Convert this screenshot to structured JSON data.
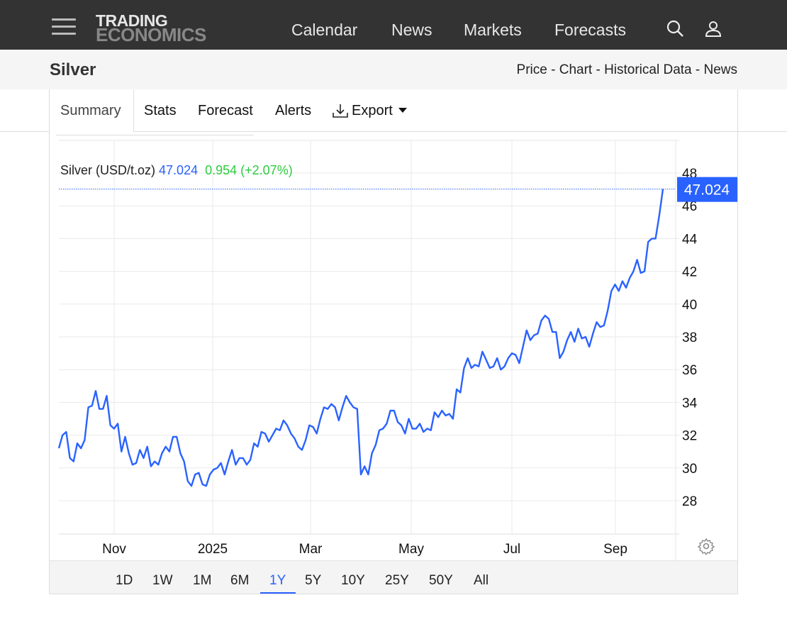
{
  "header": {
    "logo_line1": "TRADING",
    "logo_line2": "ECONOMICS",
    "nav": [
      "Calendar",
      "News",
      "Markets",
      "Forecasts"
    ]
  },
  "subheader": {
    "title": "Silver",
    "links": "Price - Chart - Historical Data - News"
  },
  "tabs": [
    "Summary",
    "Stats",
    "Forecast",
    "Alerts",
    "Export"
  ],
  "legend": {
    "name": "Silver (USD/t.oz)",
    "price": "47.024",
    "change": "0.954 (+2.07%)"
  },
  "ranges": [
    "1D",
    "1W",
    "1M",
    "6M",
    "1Y",
    "5Y",
    "10Y",
    "25Y",
    "50Y",
    "All"
  ],
  "active_range": "1Y",
  "colors": {
    "line": "#2962ff",
    "up": "#2ecc40",
    "header": "#333333"
  },
  "chart_data": {
    "type": "line",
    "title": "Silver (USD/t.oz)",
    "last_value": "47.024",
    "ylim": [
      26,
      50
    ],
    "yticks": [
      "28",
      "30",
      "32",
      "34",
      "36",
      "38",
      "40",
      "42",
      "44",
      "46",
      "48"
    ],
    "xticks": [
      "Nov",
      "2025",
      "Mar",
      "May",
      "Jul",
      "Sep"
    ],
    "x_range": [
      "Oct 2024",
      "Oct 2025"
    ],
    "values": [
      31.2,
      32.0,
      32.2,
      30.6,
      30.4,
      31.5,
      31.2,
      31.7,
      33.7,
      33.8,
      34.7,
      33.6,
      33.6,
      34.4,
      32.6,
      32.4,
      32.7,
      31.0,
      31.9,
      30.9,
      30.2,
      30.3,
      31.1,
      30.6,
      31.3,
      30.1,
      30.4,
      30.2,
      30.9,
      31.3,
      31.0,
      31.9,
      31.9,
      30.9,
      30.4,
      29.2,
      28.9,
      29.6,
      29.7,
      29.0,
      28.9,
      29.6,
      29.9,
      30.0,
      30.3,
      29.6,
      30.4,
      31.1,
      30.2,
      30.6,
      30.6,
      30.2,
      30.5,
      31.5,
      31.3,
      32.2,
      32.1,
      31.6,
      32.0,
      32.4,
      32.3,
      32.9,
      32.6,
      32.1,
      31.8,
      31.3,
      31.1,
      31.7,
      32.6,
      32.5,
      32.1,
      33.0,
      33.7,
      33.6,
      33.9,
      33.7,
      32.9,
      33.7,
      34.4,
      34.0,
      33.7,
      33.6,
      29.6,
      30.1,
      29.6,
      30.9,
      31.4,
      32.3,
      32.4,
      32.7,
      33.5,
      33.5,
      32.8,
      32.6,
      32.1,
      33.0,
      32.4,
      32.4,
      32.7,
      32.2,
      32.4,
      32.3,
      33.4,
      33.1,
      33.5,
      33.2,
      33.3,
      33.0,
      34.8,
      34.6,
      36.1,
      36.7,
      36.1,
      36.3,
      36.2,
      37.1,
      36.6,
      36.1,
      36.2,
      36.7,
      36.0,
      36.2,
      36.7,
      37.0,
      36.9,
      36.4,
      37.4,
      38.4,
      37.8,
      38.1,
      38.2,
      39.0,
      39.3,
      39.1,
      38.3,
      38.3,
      36.7,
      37.1,
      37.8,
      38.3,
      37.7,
      38.5,
      37.9,
      38.0,
      37.4,
      38.2,
      38.9,
      38.6,
      38.7,
      39.6,
      40.8,
      41.2,
      40.8,
      41.4,
      41.0,
      41.6,
      42.0,
      42.7,
      41.9,
      42.0,
      43.8,
      44.0,
      44.0,
      45.4,
      47.02
    ]
  }
}
